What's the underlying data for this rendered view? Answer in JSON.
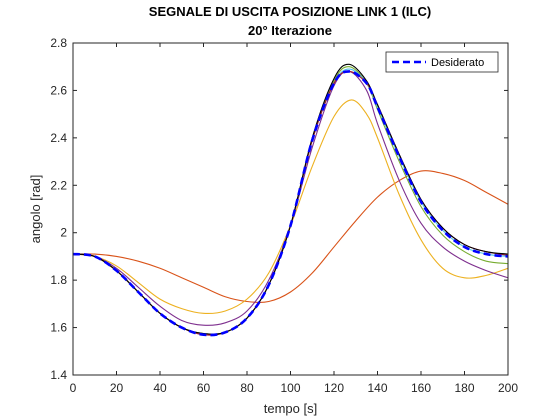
{
  "chart_data": {
    "type": "line",
    "title": "SEGNALE DI USCITA POSIZIONE LINK 1 (ILC)",
    "subtitle": "20° Iterazione",
    "xlabel": "tempo [s]",
    "ylabel": "angolo [rad]",
    "xlim": [
      0,
      200
    ],
    "ylim": [
      1.4,
      2.8
    ],
    "xticks": [
      0,
      20,
      40,
      60,
      80,
      100,
      120,
      140,
      160,
      180,
      200
    ],
    "yticks": [
      1.4,
      1.6,
      1.8,
      2,
      2.2,
      2.4,
      2.6,
      2.8
    ],
    "ytick_labels": [
      "1.4",
      "1.6",
      "1.8",
      "2",
      "2.2",
      "2.4",
      "2.6",
      "2.8"
    ],
    "grid": false,
    "legend_position": "top-right",
    "series": [
      {
        "color": "#D95319",
        "style": "solid",
        "x": [
          0,
          10,
          20,
          30,
          40,
          50,
          60,
          70,
          80,
          90,
          100,
          110,
          120,
          130,
          140,
          150,
          160,
          170,
          180,
          190,
          200
        ],
        "y": [
          1.91,
          1.91,
          1.9,
          1.88,
          1.85,
          1.81,
          1.77,
          1.73,
          1.71,
          1.71,
          1.75,
          1.83,
          1.94,
          2.05,
          2.15,
          2.22,
          2.26,
          2.25,
          2.22,
          2.17,
          2.12
        ]
      },
      {
        "color": "#EDB120",
        "style": "solid",
        "x": [
          0,
          10,
          20,
          30,
          40,
          50,
          60,
          70,
          80,
          90,
          100,
          110,
          120,
          128,
          135,
          140,
          150,
          160,
          170,
          180,
          190,
          200
        ],
        "y": [
          1.91,
          1.9,
          1.86,
          1.79,
          1.72,
          1.68,
          1.66,
          1.67,
          1.72,
          1.83,
          2.03,
          2.28,
          2.49,
          2.56,
          2.5,
          2.4,
          2.16,
          1.97,
          1.85,
          1.81,
          1.82,
          1.85
        ]
      },
      {
        "color": "#7E2F8E",
        "style": "solid",
        "x": [
          0,
          10,
          20,
          30,
          40,
          50,
          60,
          70,
          80,
          90,
          100,
          110,
          120,
          127,
          135,
          140,
          150,
          160,
          170,
          180,
          190,
          200
        ],
        "y": [
          1.91,
          1.9,
          1.85,
          1.77,
          1.69,
          1.63,
          1.61,
          1.62,
          1.67,
          1.8,
          2.03,
          2.36,
          2.62,
          2.68,
          2.6,
          2.46,
          2.22,
          2.04,
          1.94,
          1.88,
          1.84,
          1.81
        ]
      },
      {
        "color": "#77AC30",
        "style": "solid",
        "x": [
          0,
          10,
          20,
          30,
          40,
          50,
          60,
          70,
          80,
          90,
          100,
          110,
          120,
          127,
          135,
          140,
          150,
          160,
          170,
          180,
          190,
          200
        ],
        "y": [
          1.91,
          1.9,
          1.84,
          1.75,
          1.66,
          1.6,
          1.575,
          1.58,
          1.64,
          1.78,
          2.03,
          2.39,
          2.64,
          2.7,
          2.63,
          2.52,
          2.3,
          2.11,
          1.99,
          1.92,
          1.88,
          1.87
        ]
      },
      {
        "color": "#4DBEEE",
        "style": "solid",
        "x": [
          0,
          10,
          20,
          30,
          40,
          50,
          60,
          70,
          80,
          90,
          100,
          110,
          120,
          127,
          135,
          140,
          150,
          160,
          170,
          180,
          190,
          200
        ],
        "y": [
          1.91,
          1.9,
          1.84,
          1.75,
          1.66,
          1.6,
          1.57,
          1.58,
          1.64,
          1.78,
          2.03,
          2.39,
          2.63,
          2.69,
          2.63,
          2.53,
          2.32,
          2.13,
          2.01,
          1.94,
          1.91,
          1.9
        ]
      },
      {
        "color": "#A2142F",
        "style": "solid",
        "x": [
          0,
          10,
          20,
          30,
          40,
          50,
          60,
          70,
          80,
          90,
          100,
          110,
          120,
          127,
          135,
          140,
          150,
          160,
          170,
          180,
          190,
          200
        ],
        "y": [
          1.91,
          1.9,
          1.84,
          1.75,
          1.66,
          1.6,
          1.57,
          1.58,
          1.64,
          1.78,
          2.03,
          2.39,
          2.63,
          2.68,
          2.63,
          2.54,
          2.33,
          2.14,
          2.02,
          1.95,
          1.92,
          1.905
        ]
      },
      {
        "color": "#000000",
        "style": "solid",
        "x": [
          0,
          10,
          20,
          30,
          40,
          50,
          60,
          70,
          80,
          90,
          100,
          110,
          120,
          127,
          135,
          140,
          150,
          160,
          170,
          180,
          190,
          200
        ],
        "y": [
          1.91,
          1.9,
          1.84,
          1.75,
          1.66,
          1.6,
          1.575,
          1.58,
          1.64,
          1.78,
          2.03,
          2.4,
          2.65,
          2.71,
          2.64,
          2.54,
          2.33,
          2.14,
          2.02,
          1.95,
          1.92,
          1.91
        ]
      },
      {
        "name": "Desiderato",
        "color": "#0000FF",
        "style": "dashed",
        "x": [
          0,
          10,
          20,
          30,
          40,
          50,
          60,
          70,
          80,
          90,
          100,
          110,
          120,
          127,
          135,
          140,
          150,
          160,
          170,
          180,
          190,
          200
        ],
        "y": [
          1.91,
          1.9,
          1.84,
          1.75,
          1.66,
          1.6,
          1.57,
          1.58,
          1.64,
          1.78,
          2.03,
          2.39,
          2.63,
          2.68,
          2.63,
          2.53,
          2.32,
          2.13,
          2.01,
          1.94,
          1.91,
          1.9
        ]
      }
    ]
  }
}
